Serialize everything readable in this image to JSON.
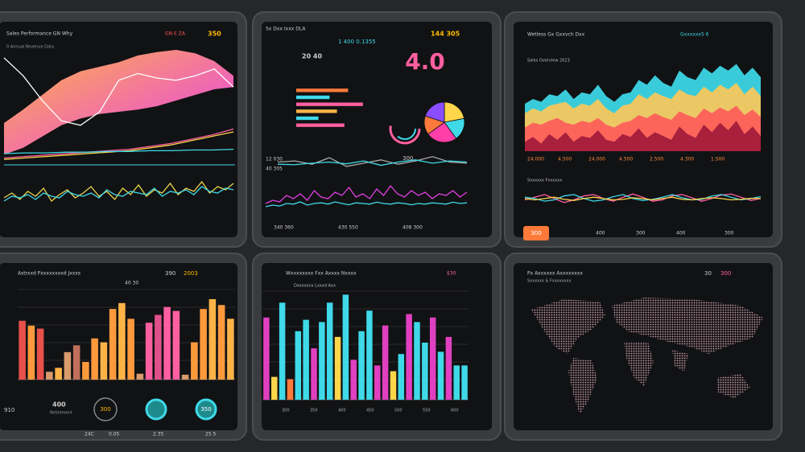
{
  "panels": [
    {
      "texts": [
        "Sales Performance GN Why",
        "GN E ZA",
        "350",
        "0 Annual Revenue Data"
      ],
      "charts": [
        {
          "type": "band",
          "ylim": [
            0,
            100
          ],
          "colors": [
            "#e63cf0",
            "#ffb347"
          ],
          "values": [
            30,
            42,
            55,
            68,
            76,
            80,
            84,
            90,
            93,
            95,
            92,
            85,
            72
          ],
          "low": [
            2,
            8,
            18,
            28,
            34,
            38,
            40,
            42,
            45,
            50,
            55,
            60,
            62
          ]
        },
        {
          "type": "line",
          "ylim": [
            0,
            100
          ],
          "color": "#ffffff",
          "values": [
            88,
            72,
            50,
            32,
            28,
            40,
            68,
            74,
            70,
            68,
            72,
            78,
            62
          ]
        },
        {
          "type": "line",
          "ylim": [
            0,
            100
          ],
          "color": "#ffd54a",
          "values": [
            2,
            4,
            6,
            8,
            10,
            12,
            14,
            18,
            22,
            28,
            34,
            40
          ]
        },
        {
          "type": "line",
          "ylim": [
            0,
            100
          ],
          "color": "#ff5fa0",
          "values": [
            4,
            6,
            8,
            10,
            12,
            14,
            16,
            20,
            24,
            30,
            36,
            44
          ]
        },
        {
          "type": "line",
          "ylim": [
            0,
            100
          ],
          "color": "#3fd9e8",
          "values": [
            10,
            11,
            11,
            12,
            12,
            13,
            13,
            14,
            14,
            15,
            15,
            16
          ]
        },
        {
          "type": "line",
          "ylim": [
            0,
            100
          ],
          "color": "#e8d24a",
          "values": [
            40,
            55,
            35,
            60,
            45,
            70,
            30,
            50,
            65,
            40,
            55,
            75,
            45,
            60,
            35,
            70,
            50,
            80,
            45,
            65,
            55,
            85,
            50,
            70,
            60,
            90,
            55,
            75,
            65,
            85
          ]
        },
        {
          "type": "line",
          "ylim": [
            0,
            100
          ],
          "color": "#3fd9e8",
          "values": [
            30,
            45,
            40,
            50,
            35,
            55,
            45,
            40,
            60,
            50,
            45,
            55,
            40,
            65,
            50,
            45,
            60,
            55,
            50,
            70,
            45,
            60,
            55,
            65,
            50,
            75,
            60,
            55,
            70,
            65
          ]
        }
      ]
    },
    {
      "texts": [
        "Sx Dxx Ixxx DLA",
        "1 400 0.1355",
        "144 305",
        "20 40",
        "4.0",
        "12 030",
        "40 305",
        "300",
        "340 360",
        "430 550",
        "408 300"
      ],
      "charts": [
        {
          "type": "hbars",
          "xlim": [
            0,
            100
          ],
          "values": [
            70,
            45,
            90,
            55,
            30,
            65
          ],
          "colors": [
            "#ff7a3a",
            "#3fd9e8",
            "#ff5fa0",
            "#ffb347",
            "#3fd9e8",
            "#ff5fa0"
          ]
        },
        {
          "type": "pie",
          "values": [
            22,
            18,
            25,
            15,
            20
          ],
          "colors": [
            "#ffd54a",
            "#3fd9e8",
            "#ff3fa8",
            "#ff7a3a",
            "#8a4dff"
          ]
        },
        {
          "type": "line",
          "ylim": [
            0,
            100
          ],
          "color": "#aaaaaa",
          "values": [
            50,
            55,
            40,
            70,
            30,
            45,
            60,
            40,
            55,
            75,
            50,
            45
          ]
        },
        {
          "type": "line",
          "ylim": [
            0,
            100
          ],
          "color": "#3fd9e8",
          "values": [
            40,
            38,
            45,
            50,
            42,
            55,
            35,
            50,
            60,
            45,
            55,
            50
          ]
        },
        {
          "type": "line",
          "ylim": [
            0,
            100
          ],
          "color": "#e040e0",
          "values": [
            30,
            40,
            35,
            55,
            45,
            60,
            40,
            70,
            50,
            45,
            65,
            55,
            80,
            50,
            60,
            45,
            75,
            55,
            85,
            60,
            50,
            70,
            55,
            65,
            45,
            60,
            55,
            70,
            50,
            65
          ]
        },
        {
          "type": "line",
          "ylim": [
            0,
            100
          ],
          "color": "#3fd9e8",
          "values": [
            20,
            25,
            22,
            30,
            28,
            35,
            25,
            30,
            32,
            28,
            35,
            30,
            26,
            32,
            30,
            28,
            34,
            30,
            28,
            32,
            30,
            26,
            30,
            28,
            32,
            30,
            28,
            34,
            30,
            32
          ]
        }
      ]
    },
    {
      "texts": [
        "Wetless Gx Gxxvch Dxx",
        "GxxxxxxS 6",
        "Sales Overview 2023",
        "24.000",
        "4.500",
        "24.000",
        "4.500",
        "2.500",
        "4.300",
        "1.500",
        "Sxxxxxx Fxxxxxx",
        "300",
        "400",
        "300",
        "400",
        "300"
      ],
      "charts": [
        {
          "type": "area",
          "ylim": [
            0,
            100
          ],
          "color": "#3fe0f0",
          "values": [
            50,
            55,
            52,
            60,
            58,
            65,
            55,
            62,
            60,
            70,
            58,
            52,
            60,
            62,
            75,
            70,
            80,
            72,
            68,
            85,
            78,
            75,
            88,
            82,
            90,
            85,
            92,
            80,
            88,
            78
          ]
        },
        {
          "type": "area",
          "ylim": [
            0,
            100
          ],
          "color": "#ffc857",
          "values": [
            40,
            45,
            42,
            48,
            50,
            52,
            45,
            50,
            48,
            55,
            45,
            40,
            48,
            50,
            60,
            55,
            62,
            58,
            55,
            65,
            60,
            58,
            68,
            62,
            70,
            65,
            72,
            60,
            68,
            58
          ]
        },
        {
          "type": "area",
          "ylim": [
            0,
            100
          ],
          "color": "#ff5a5a",
          "values": [
            25,
            30,
            28,
            32,
            35,
            30,
            28,
            32,
            30,
            35,
            28,
            25,
            30,
            32,
            38,
            35,
            40,
            36,
            33,
            42,
            38,
            35,
            45,
            40,
            46,
            42,
            48,
            38,
            44,
            36
          ]
        },
        {
          "type": "area",
          "ylim": [
            0,
            100
          ],
          "color": "#a0183a",
          "values": [
            10,
            15,
            8,
            18,
            12,
            20,
            10,
            16,
            14,
            22,
            12,
            10,
            18,
            15,
            24,
            14,
            20,
            16,
            12,
            26,
            18,
            14,
            28,
            20,
            30,
            22,
            32,
            18,
            26,
            16
          ]
        },
        {
          "type": "line",
          "ylim": [
            0,
            100
          ],
          "color": "#ff5fa0",
          "values": [
            50,
            60,
            70,
            55,
            40,
            50,
            65,
            70,
            55,
            45,
            60,
            72,
            60,
            45,
            50,
            65,
            70,
            58,
            45,
            55,
            68,
            72,
            60,
            48,
            55
          ]
        },
        {
          "type": "line",
          "ylim": [
            0,
            100
          ],
          "color": "#3fd9e8",
          "values": [
            60,
            55,
            45,
            50,
            65,
            70,
            55,
            45,
            50,
            62,
            70,
            55,
            48,
            52,
            60,
            70,
            58,
            50,
            52,
            64,
            70,
            60,
            50,
            55,
            62
          ]
        },
        {
          "type": "line",
          "ylim": [
            0,
            100
          ],
          "color": "#ffd54a",
          "values": [
            55,
            50,
            55,
            60,
            52,
            48,
            55,
            60,
            55,
            50,
            52,
            58,
            55,
            50,
            55,
            60,
            52,
            50,
            55,
            58,
            55,
            50,
            52,
            56,
            55
          ]
        }
      ]
    },
    {
      "texts": [
        "Astrxxd Pxxxxxxxxd Jxxxs",
        "40 30",
        "390",
        "2003",
        "400",
        "Retirement",
        "910",
        "300",
        "350",
        "24C",
        "0.05",
        "2.35",
        "25 5"
      ],
      "charts": [
        {
          "type": "bars",
          "ylim": [
            0,
            100
          ],
          "values": [
            60,
            55,
            52,
            8,
            12,
            28,
            35,
            18,
            42,
            38,
            72,
            78,
            62,
            6,
            58,
            66,
            74,
            70,
            5,
            38,
            72,
            82,
            76,
            62
          ],
          "colors": [
            "#e8504a",
            "#ff9a3c",
            "#e8504a",
            "#d99a6c",
            "#ffb347",
            "#d99a6c",
            "#c0705a",
            "#ff9a3c",
            "#ff9a3c",
            "#ffb347",
            "#ff9a3c",
            "#ffb347",
            "#ff9a3c",
            "#d99a6c",
            "#ff5fa0",
            "#e0508a",
            "#ff5fa0",
            "#ff5fa0",
            "#d99a6c",
            "#ff9a3c",
            "#ff9a3c",
            "#ffb347",
            "#ff9a3c",
            "#ffb347"
          ]
        }
      ]
    },
    {
      "texts": [
        "Wxxxxxxxx Fxx Axxxx Nxxxx",
        "Dxxxxxxx Lxxxd Axx",
        "$30",
        "300",
        "350",
        "400",
        "450",
        "500",
        "550",
        "600"
      ],
      "charts": [
        {
          "type": "bars",
          "ylim": [
            0,
            100
          ],
          "values": [
            72,
            20,
            85,
            18,
            60,
            70,
            45,
            68,
            85,
            55,
            92,
            35,
            60,
            78,
            30,
            65,
            25,
            40,
            75,
            68,
            50,
            72,
            42,
            55,
            30,
            30
          ],
          "colors": [
            "#e040c0",
            "#ffd54a",
            "#3fd9e8",
            "#ff7a3a",
            "#3fd9e8",
            "#3fd9e8",
            "#e040c0",
            "#3fd9e8",
            "#3fd9e8",
            "#ffd54a",
            "#3fd9e8",
            "#e040c0",
            "#3fd9e8",
            "#3fd9e8",
            "#e040c0",
            "#e040c0",
            "#ffd54a",
            "#3fd9e8",
            "#e040c0",
            "#3fd9e8",
            "#3fd9e8",
            "#e040c0",
            "#3fd9e8",
            "#e040c0",
            "#3fd9e8",
            "#3fd9e8"
          ]
        }
      ]
    },
    {
      "texts": [
        "Px Axxxxxx Axxxxxxxx",
        "Sxxxxxx & Fxxxxxxxx",
        "30",
        "300"
      ],
      "charts": []
    }
  ]
}
